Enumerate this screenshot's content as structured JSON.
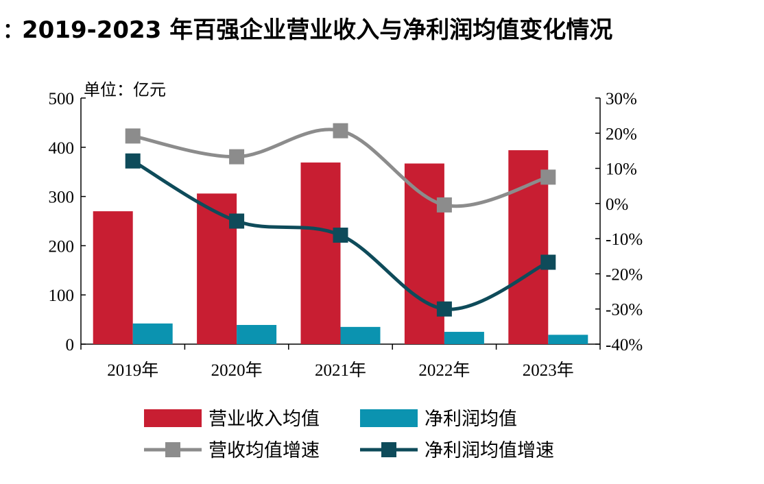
{
  "header": {
    "prefix": "：",
    "title": "2019-2023 年百强企业营业收入与净利润均值变化情况"
  },
  "chart_data": {
    "type": "bar",
    "title": "2019-2023 年百强企业营业收入与净利润均值变化情况",
    "unit_label": "单位：亿元",
    "categories": [
      "2019年",
      "2020年",
      "2021年",
      "2022年",
      "2023年"
    ],
    "left_axis": {
      "min": 0,
      "max": 500,
      "ticks": [
        0,
        100,
        200,
        300,
        400,
        500
      ],
      "tick_labels": [
        "0",
        "100",
        "200",
        "300",
        "400",
        "500"
      ]
    },
    "right_axis": {
      "min": -40,
      "max": 30,
      "ticks": [
        -40,
        -30,
        -20,
        -10,
        0,
        10,
        20,
        30
      ],
      "tick_labels": [
        "-40%",
        "-30%",
        "-20%",
        "-10%",
        "0%",
        "10%",
        "20%",
        "30%"
      ]
    },
    "grid": false,
    "legend_position": "bottom",
    "series": [
      {
        "name": "营业收入均值",
        "type": "bar",
        "axis": "left",
        "color": "#C81E32",
        "values": [
          270,
          306,
          369,
          367,
          394
        ]
      },
      {
        "name": "净利润均值",
        "type": "bar",
        "axis": "left",
        "color": "#0B93B0",
        "values": [
          42,
          39,
          35,
          25,
          19
        ]
      },
      {
        "name": "营收均值增速",
        "type": "line",
        "axis": "right",
        "color": "#8C8C8C",
        "values": [
          19.2,
          13.3,
          20.7,
          -0.4,
          7.5
        ]
      },
      {
        "name": "净利润均值增速",
        "type": "line",
        "axis": "right",
        "color": "#0E4B5A",
        "values": [
          12.1,
          -5.0,
          -9.0,
          -30.0,
          -16.7
        ]
      }
    ]
  }
}
